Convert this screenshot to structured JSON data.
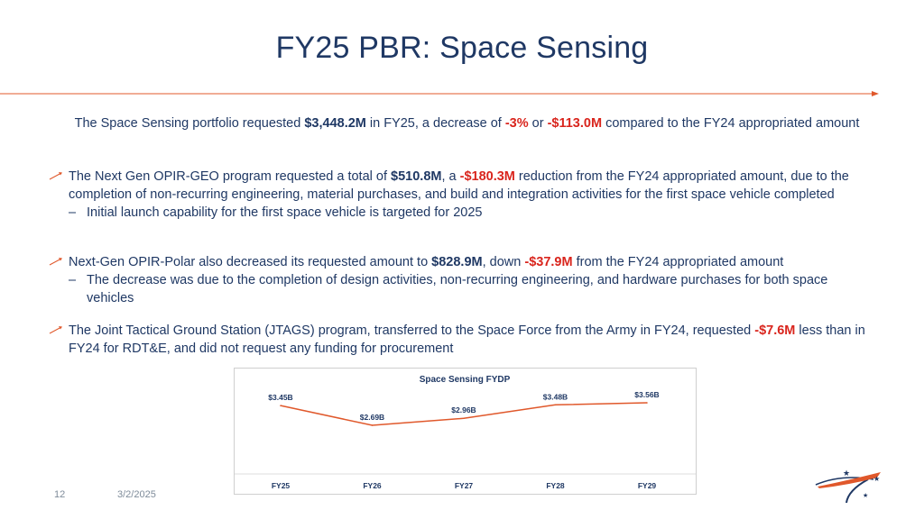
{
  "slide": {
    "title": "FY25 PBR: Space Sensing",
    "page_number": "12",
    "date": "3/2/2025"
  },
  "intro": {
    "t1": "The Space Sensing portfolio requested ",
    "v1": "$3,448.2M",
    "t2": " in FY25, a decrease of ",
    "v2": "-3%",
    "t3": " or ",
    "v3": "-$113.0M",
    "t4": " compared to the FY24 appropriated amount"
  },
  "bullets": [
    {
      "t1": "The Next Gen OPIR-GEO program requested a total of ",
      "v1": "$510.8M",
      "t2": ", a ",
      "v2": "-$180.3M",
      "t3": " reduction from the FY24 appropriated amount, due to the completion of non-recurring engineering, material purchases, and build and integration activities for the first space vehicle completed",
      "sub": "Initial launch capability for the first space vehicle is targeted for 2025"
    },
    {
      "t1": "Next-Gen OPIR-Polar also decreased its requested amount to ",
      "v1": "$828.9M",
      "t2": ", down ",
      "v2": "-$37.9M",
      "t3": " from the FY24 appropriated amount",
      "sub": "The decrease was due to the completion of design activities, non-recurring engineering, and hardware purchases for both space vehicles"
    },
    {
      "t1": "The Joint Tactical Ground Station (JTAGS) program, transferred to the Space Force from the Army in FY24, requested ",
      "v1": "-$7.6M",
      "t2": " less than in FY24 for RDT&E, and did not request any funding for procurement"
    }
  ],
  "colors": {
    "title": "#1f3864",
    "accent": "#e0582b",
    "negative": "#d9251d",
    "line": "#e0582b"
  },
  "chart_data": {
    "type": "line",
    "title": "Space Sensing FYDP",
    "categories": [
      "FY25",
      "FY26",
      "FY27",
      "FY28",
      "FY29"
    ],
    "values": [
      3.45,
      2.69,
      2.96,
      3.48,
      3.56
    ],
    "data_labels": [
      "$3.45B",
      "$2.69B",
      "$2.96B",
      "$3.48B",
      "$3.56B"
    ],
    "grid": false,
    "legend": "none"
  }
}
